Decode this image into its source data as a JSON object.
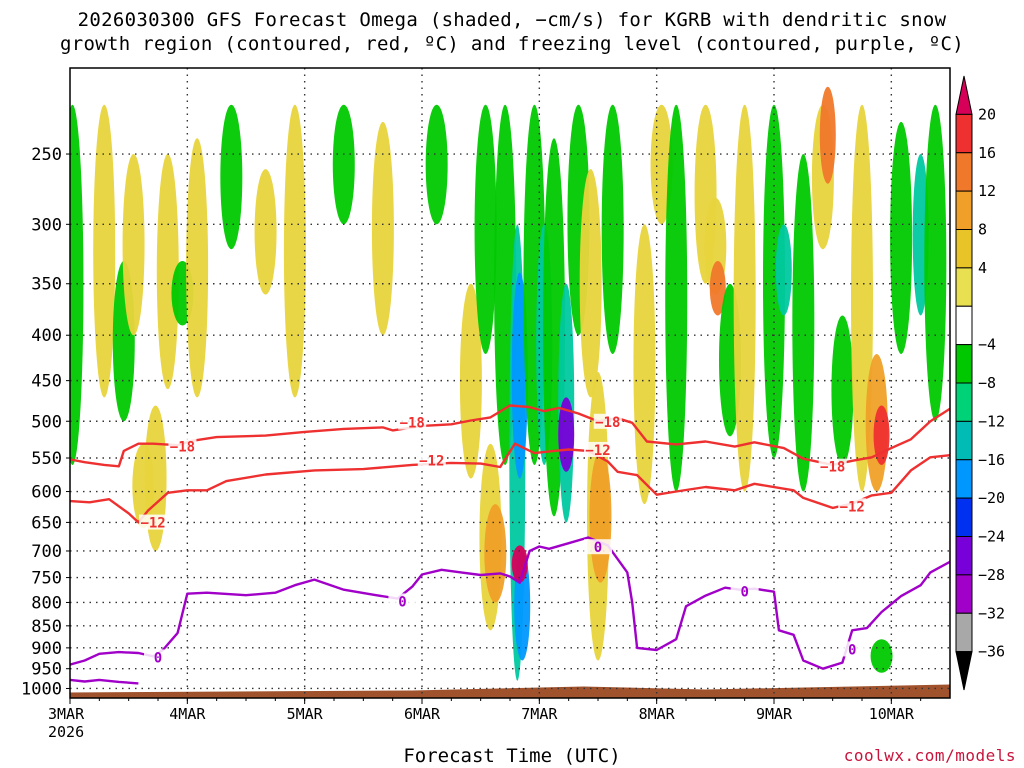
{
  "chart_data": {
    "type": "heatmap",
    "title_line1": "2026030300 GFS Forecast Omega (shaded, −cm/s) for KGRB with dendritic snow",
    "title_line2": "growth region (contoured, red, ºC) and freezing level (contoured, purple, ºC)",
    "xlabel": "Forecast Time (UTC)",
    "credit": "coolwx.com/models",
    "x_ticks": [
      {
        "label": "3MAR",
        "sub": "2026",
        "hours": 0
      },
      {
        "label": "4MAR",
        "hours": 24
      },
      {
        "label": "5MAR",
        "hours": 48
      },
      {
        "label": "6MAR",
        "hours": 72
      },
      {
        "label": "7MAR",
        "hours": 96
      },
      {
        "label": "8MAR",
        "hours": 120
      },
      {
        "label": "9MAR",
        "hours": 144
      },
      {
        "label": "10MAR",
        "hours": 168
      }
    ],
    "x_range_hours": [
      0,
      180
    ],
    "y_levels_hpa": [
      "250",
      "300",
      "350",
      "400",
      "450",
      "500",
      "550",
      "600",
      "650",
      "700",
      "750",
      "800",
      "850",
      "900",
      "950",
      "1000"
    ],
    "y_range_hpa": [
      200,
      1025
    ],
    "colorbar": {
      "labels": [
        "20",
        "16",
        "12",
        "8",
        "4",
        "−4",
        "−8",
        "−12",
        "−16",
        "−20",
        "−24",
        "−28",
        "−32",
        "−36"
      ],
      "colors": [
        "#d60059",
        "#ee3030",
        "#f0782a",
        "#f0a028",
        "#e8c428",
        "#e8e050",
        "#ffffff",
        "#00c800",
        "#00d278",
        "#00bcb4",
        "#0098ff",
        "#0030f0",
        "#7800d8",
        "#a000c8",
        "#a8a8a8",
        "#000000"
      ]
    },
    "omega_blobs": [
      {
        "t": 0.5,
        "p0": 220,
        "p1": 560,
        "val": -8
      },
      {
        "t": 7,
        "p0": 220,
        "p1": 470,
        "val": 4
      },
      {
        "t": 11,
        "p0": 330,
        "p1": 500,
        "val": -8
      },
      {
        "t": 13,
        "p0": 250,
        "p1": 400,
        "val": 4
      },
      {
        "t": 15,
        "p0": 530,
        "p1": 660,
        "val": 4
      },
      {
        "t": 17.5,
        "p0": 480,
        "p1": 700,
        "val": 4
      },
      {
        "t": 20,
        "p0": 250,
        "p1": 460,
        "val": 4
      },
      {
        "t": 23,
        "p0": 330,
        "p1": 390,
        "val": -8
      },
      {
        "t": 26,
        "p0": 240,
        "p1": 470,
        "val": 4
      },
      {
        "t": 33,
        "p0": 220,
        "p1": 320,
        "val": -8
      },
      {
        "t": 40,
        "p0": 260,
        "p1": 360,
        "val": 4
      },
      {
        "t": 46,
        "p0": 220,
        "p1": 470,
        "val": 4
      },
      {
        "t": 56,
        "p0": 220,
        "p1": 300,
        "val": -8
      },
      {
        "t": 64,
        "p0": 230,
        "p1": 400,
        "val": 4
      },
      {
        "t": 75,
        "p0": 220,
        "p1": 300,
        "val": -8
      },
      {
        "t": 82,
        "p0": 350,
        "p1": 580,
        "val": 4
      },
      {
        "t": 85,
        "p0": 220,
        "p1": 420,
        "val": -8
      },
      {
        "t": 86,
        "p0": 530,
        "p1": 860,
        "val": 4
      },
      {
        "t": 87,
        "p0": 620,
        "p1": 800,
        "val": 8
      },
      {
        "t": 89,
        "p0": 220,
        "p1": 560,
        "val": -8
      },
      {
        "t": 91.5,
        "p0": 300,
        "p1": 980,
        "val": -12
      },
      {
        "t": 92,
        "p0": 340,
        "p1": 580,
        "val": -16
      },
      {
        "t": 92.5,
        "p0": 700,
        "p1": 930,
        "val": -16
      },
      {
        "t": 92,
        "p0": 690,
        "p1": 760,
        "val": 20
      },
      {
        "t": 95,
        "p0": 220,
        "p1": 560,
        "val": -8
      },
      {
        "t": 97,
        "p0": 300,
        "p1": 560,
        "val": -12
      },
      {
        "t": 99,
        "p0": 240,
        "p1": 640,
        "val": -8
      },
      {
        "t": 101.5,
        "p0": 350,
        "p1": 650,
        "val": -12
      },
      {
        "t": 101.5,
        "p0": 470,
        "p1": 570,
        "val": -24
      },
      {
        "t": 104,
        "p0": 220,
        "p1": 400,
        "val": -8
      },
      {
        "t": 106.5,
        "p0": 260,
        "p1": 470,
        "val": 4
      },
      {
        "t": 108,
        "p0": 440,
        "p1": 930,
        "val": 4
      },
      {
        "t": 108.5,
        "p0": 540,
        "p1": 760,
        "val": 8
      },
      {
        "t": 111,
        "p0": 220,
        "p1": 420,
        "val": -8
      },
      {
        "t": 117.5,
        "p0": 300,
        "p1": 620,
        "val": 4
      },
      {
        "t": 121,
        "p0": 220,
        "p1": 300,
        "val": 4
      },
      {
        "t": 124,
        "p0": 220,
        "p1": 600,
        "val": -8
      },
      {
        "t": 130,
        "p0": 220,
        "p1": 350,
        "val": 4
      },
      {
        "t": 132,
        "p0": 280,
        "p1": 360,
        "val": 4
      },
      {
        "t": 132.5,
        "p0": 330,
        "p1": 380,
        "val": 12
      },
      {
        "t": 135,
        "p0": 350,
        "p1": 520,
        "val": -8
      },
      {
        "t": 138,
        "p0": 220,
        "p1": 600,
        "val": 4
      },
      {
        "t": 144,
        "p0": 220,
        "p1": 550,
        "val": -8
      },
      {
        "t": 146,
        "p0": 300,
        "p1": 380,
        "val": -12
      },
      {
        "t": 150,
        "p0": 250,
        "p1": 600,
        "val": -8
      },
      {
        "t": 154,
        "p0": 220,
        "p1": 320,
        "val": 4
      },
      {
        "t": 155,
        "p0": 210,
        "p1": 270,
        "val": 12
      },
      {
        "t": 158,
        "p0": 380,
        "p1": 560,
        "val": -8
      },
      {
        "t": 162,
        "p0": 220,
        "p1": 600,
        "val": 4
      },
      {
        "t": 165,
        "p0": 420,
        "p1": 600,
        "val": 8
      },
      {
        "t": 166,
        "p0": 480,
        "p1": 560,
        "val": 16
      },
      {
        "t": 166,
        "p0": 880,
        "p1": 960,
        "val": -8
      },
      {
        "t": 170,
        "p0": 230,
        "p1": 420,
        "val": -8
      },
      {
        "t": 174,
        "p0": 250,
        "p1": 380,
        "val": -12
      },
      {
        "t": 177,
        "p0": 220,
        "p1": 500,
        "val": -8
      }
    ],
    "contours": [
      {
        "name": "dgz-top-minus18",
        "color": "#ee3030",
        "label": "−18",
        "label_positions": [
          [
            23,
            535
          ],
          [
            70,
            503
          ],
          [
            110,
            502
          ],
          [
            156,
            564
          ]
        ],
        "points": [
          [
            0,
            552
          ],
          [
            3,
            556
          ],
          [
            7,
            560
          ],
          [
            10,
            562
          ],
          [
            11,
            540
          ],
          [
            14,
            530
          ],
          [
            17,
            530
          ],
          [
            22,
            532
          ],
          [
            25,
            526
          ],
          [
            30,
            521
          ],
          [
            40,
            519
          ],
          [
            48,
            514
          ],
          [
            56,
            510
          ],
          [
            64,
            508
          ],
          [
            66,
            512
          ],
          [
            72,
            506
          ],
          [
            78,
            504
          ],
          [
            82,
            499
          ],
          [
            86,
            495
          ],
          [
            90,
            480
          ],
          [
            94,
            482
          ],
          [
            97,
            487
          ],
          [
            100,
            483
          ],
          [
            104,
            490
          ],
          [
            108,
            500
          ],
          [
            112,
            496
          ],
          [
            115,
            502
          ],
          [
            118,
            527
          ],
          [
            124,
            531
          ],
          [
            130,
            527
          ],
          [
            136,
            534
          ],
          [
            140,
            528
          ],
          [
            146,
            536
          ],
          [
            150,
            551
          ],
          [
            156,
            560
          ],
          [
            160,
            554
          ],
          [
            164,
            549
          ],
          [
            168,
            536
          ],
          [
            172,
            524
          ],
          [
            176,
            500
          ],
          [
            180,
            484
          ]
        ]
      },
      {
        "name": "dgz-bottom-minus12",
        "color": "#ee3030",
        "label": "−12",
        "label_positions": [
          [
            17,
            652
          ],
          [
            74,
            555
          ],
          [
            108,
            540
          ],
          [
            160,
            625
          ]
        ],
        "points": [
          [
            0,
            615
          ],
          [
            4,
            617
          ],
          [
            8,
            612
          ],
          [
            12,
            635
          ],
          [
            14,
            650
          ],
          [
            16,
            630
          ],
          [
            20,
            602
          ],
          [
            24,
            598
          ],
          [
            28,
            598
          ],
          [
            32,
            584
          ],
          [
            40,
            574
          ],
          [
            50,
            568
          ],
          [
            60,
            566
          ],
          [
            70,
            560
          ],
          [
            78,
            557
          ],
          [
            84,
            558
          ],
          [
            88,
            563
          ],
          [
            91,
            530
          ],
          [
            95,
            543
          ],
          [
            99,
            540
          ],
          [
            102,
            538
          ],
          [
            106,
            540
          ],
          [
            110,
            555
          ],
          [
            112,
            570
          ],
          [
            116,
            575
          ],
          [
            120,
            605
          ],
          [
            124,
            600
          ],
          [
            130,
            593
          ],
          [
            136,
            598
          ],
          [
            140,
            588
          ],
          [
            148,
            598
          ],
          [
            150,
            610
          ],
          [
            156,
            626
          ],
          [
            160,
            619
          ],
          [
            164,
            606
          ],
          [
            168,
            602
          ],
          [
            172,
            568
          ],
          [
            176,
            549
          ],
          [
            180,
            546
          ]
        ]
      },
      {
        "name": "freezing-level-0",
        "color": "#a000c8",
        "label": "0",
        "label_positions": [
          [
            18,
            925
          ],
          [
            68,
            800
          ],
          [
            108,
            695
          ],
          [
            138,
            780
          ],
          [
            160,
            906
          ]
        ],
        "points": [
          [
            0,
            940
          ],
          [
            3,
            930
          ],
          [
            6,
            914
          ],
          [
            10,
            910
          ],
          [
            14,
            912
          ],
          [
            17,
            920
          ],
          [
            19,
            905
          ],
          [
            22,
            866
          ],
          [
            24,
            782
          ],
          [
            28,
            780
          ],
          [
            36,
            785
          ],
          [
            42,
            780
          ],
          [
            46,
            765
          ],
          [
            50,
            754
          ],
          [
            56,
            774
          ],
          [
            62,
            784
          ],
          [
            67,
            792
          ],
          [
            70,
            768
          ],
          [
            72,
            744
          ],
          [
            76,
            735
          ],
          [
            80,
            740
          ],
          [
            84,
            745
          ],
          [
            88,
            742
          ],
          [
            90,
            748
          ],
          [
            92,
            760
          ],
          [
            94,
            700
          ],
          [
            96,
            692
          ],
          [
            98,
            696
          ],
          [
            102,
            686
          ],
          [
            106,
            676
          ],
          [
            110,
            690
          ],
          [
            114,
            740
          ],
          [
            115,
            800
          ],
          [
            116,
            900
          ],
          [
            120,
            905
          ],
          [
            124,
            880
          ],
          [
            126,
            808
          ],
          [
            130,
            786
          ],
          [
            134,
            770
          ],
          [
            137,
            774
          ],
          [
            140,
            772
          ],
          [
            144,
            778
          ],
          [
            145,
            860
          ],
          [
            148,
            870
          ],
          [
            150,
            930
          ],
          [
            154,
            950
          ],
          [
            158,
            935
          ],
          [
            160,
            860
          ],
          [
            163,
            855
          ],
          [
            166,
            820
          ],
          [
            170,
            787
          ],
          [
            174,
            765
          ],
          [
            176,
            740
          ],
          [
            180,
            720
          ]
        ]
      },
      {
        "name": "freezing-level-0-lower",
        "color": "#a000c8",
        "points": [
          [
            0,
            978
          ],
          [
            3,
            982
          ],
          [
            6,
            978
          ],
          [
            10,
            983
          ],
          [
            14,
            987
          ]
        ]
      }
    ],
    "ground_level_hpa": 1000,
    "ground_color": "#a0522d"
  }
}
